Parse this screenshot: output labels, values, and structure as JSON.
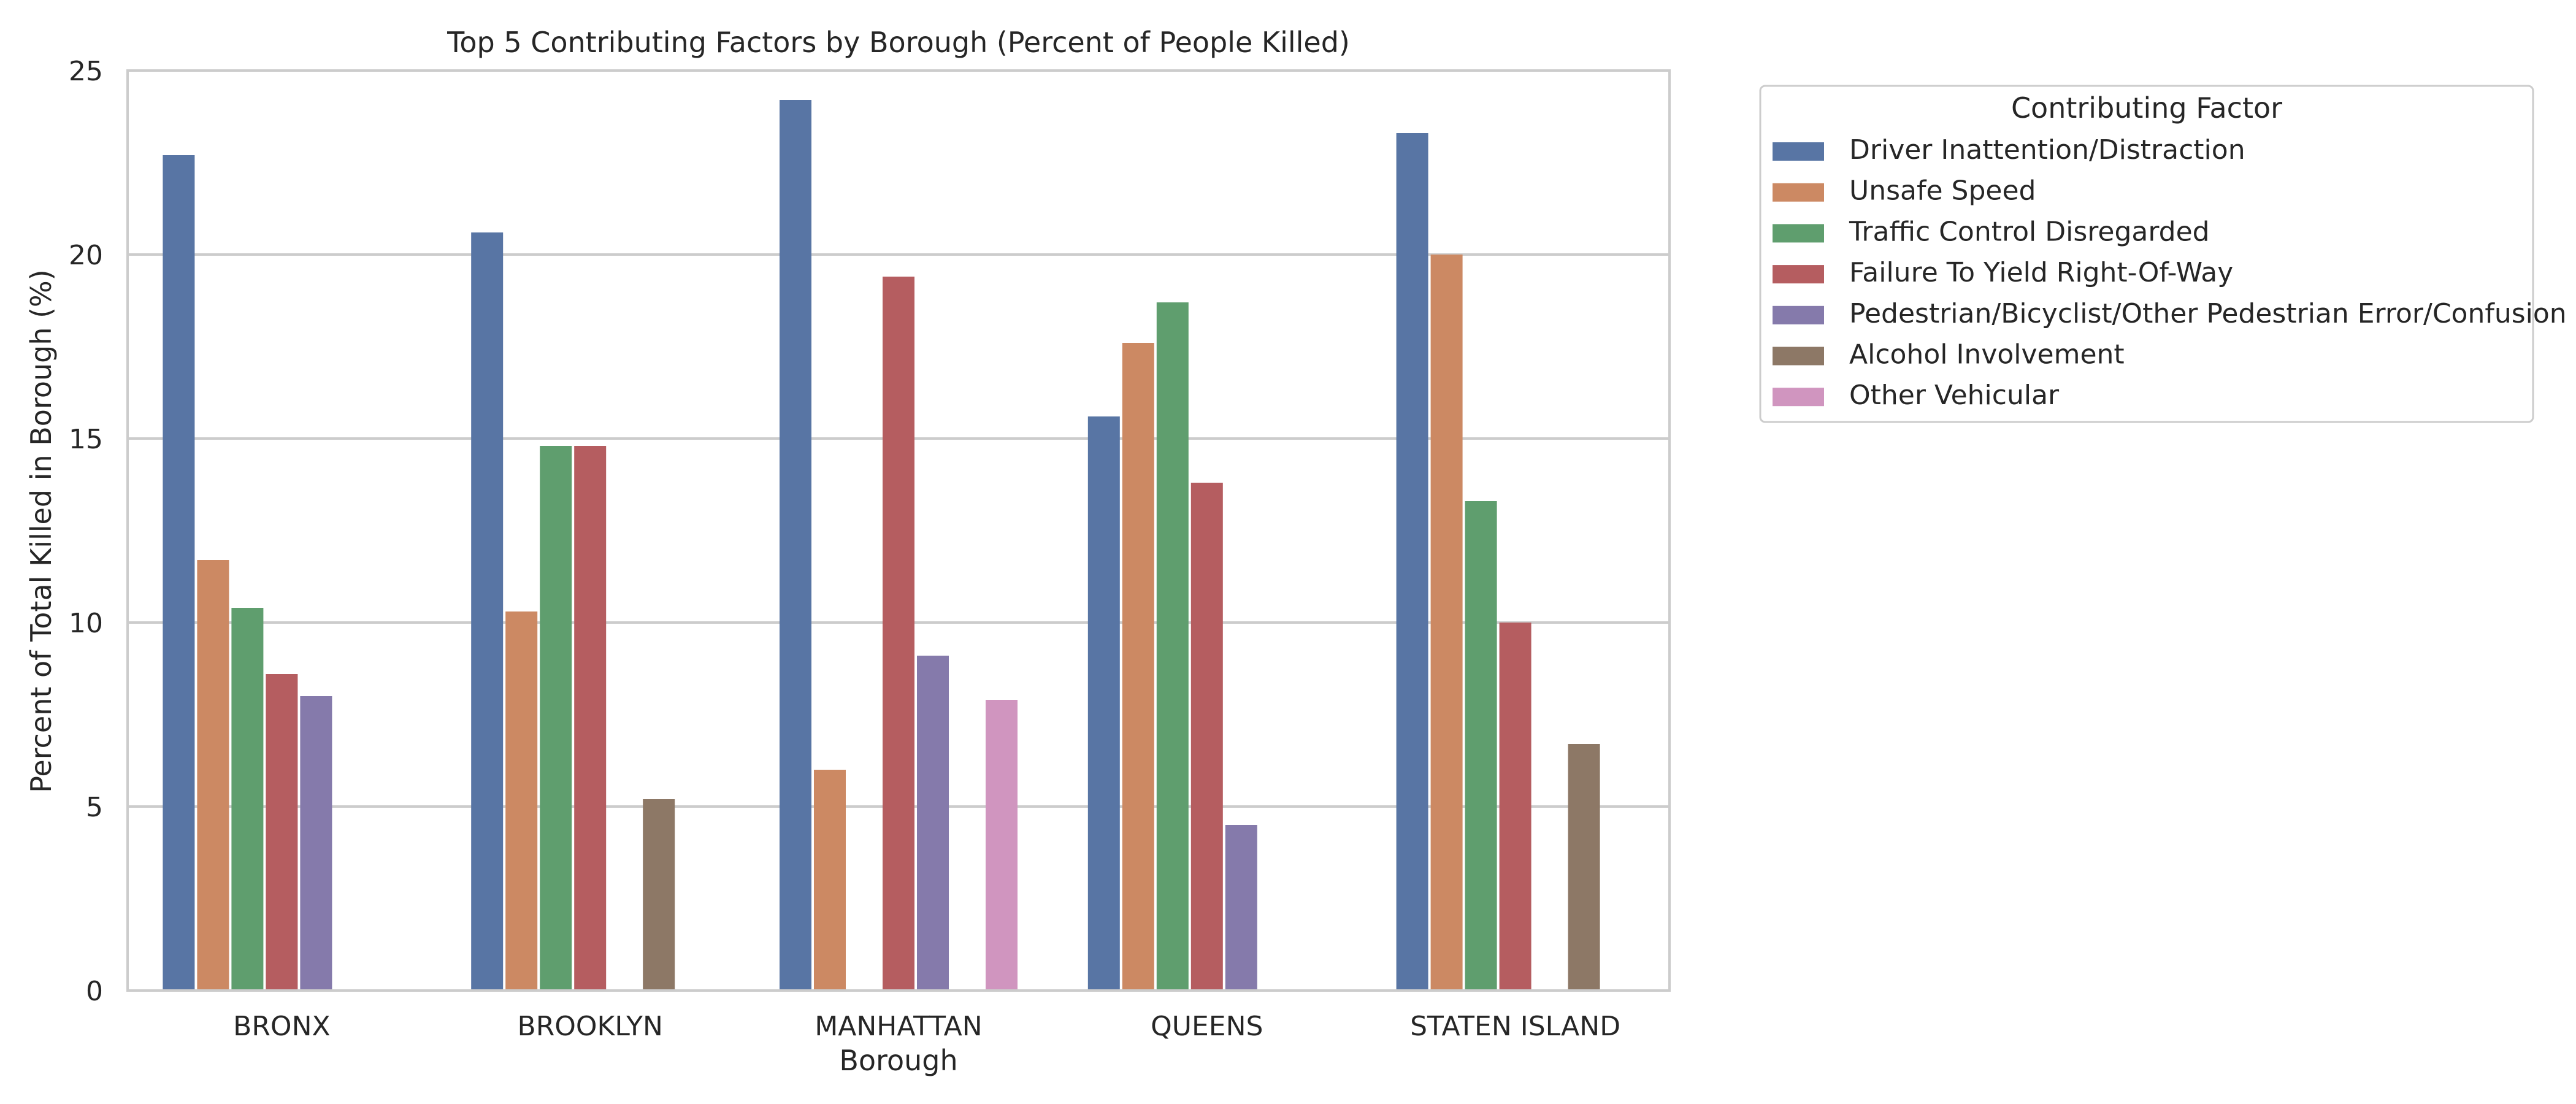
{
  "chart_data": {
    "type": "bar",
    "title": "Top 5 Contributing Factors by Borough (Percent of People Killed)",
    "xlabel": "Borough",
    "ylabel": "Percent of Total Killed in Borough (%)",
    "ylim": [
      0,
      25
    ],
    "yticks": [
      0,
      5,
      10,
      15,
      20,
      25
    ],
    "grid": "horizontal",
    "legend_placement": "outside-upper-right",
    "legend_title": "Contributing Factor",
    "categories": [
      "BRONX",
      "BROOKLYN",
      "MANHATTAN",
      "QUEENS",
      "STATEN ISLAND"
    ],
    "series": [
      {
        "name": "Driver Inattention/Distraction",
        "color": "#5875a4",
        "values": [
          22.7,
          20.6,
          24.2,
          15.6,
          23.3
        ]
      },
      {
        "name": "Unsafe Speed",
        "color": "#cc8963",
        "values": [
          11.7,
          10.3,
          6.0,
          17.6,
          20.0
        ]
      },
      {
        "name": "Traffic Control Disregarded",
        "color": "#5f9e6e",
        "values": [
          10.4,
          14.8,
          null,
          18.7,
          13.3
        ]
      },
      {
        "name": "Failure To Yield Right-Of-Way",
        "color": "#b55d60",
        "values": [
          8.6,
          14.8,
          19.4,
          13.8,
          10.0
        ]
      },
      {
        "name": "Pedestrian/Bicyclist/Other Pedestrian Error/Confusion",
        "color": "#857aab",
        "values": [
          8.0,
          null,
          9.1,
          4.5,
          null
        ]
      },
      {
        "name": "Alcohol Involvement",
        "color": "#8d7866",
        "values": [
          null,
          5.2,
          null,
          null,
          6.7
        ]
      },
      {
        "name": "Other Vehicular",
        "color": "#d095bf",
        "values": [
          null,
          null,
          7.9,
          null,
          null
        ]
      }
    ]
  }
}
